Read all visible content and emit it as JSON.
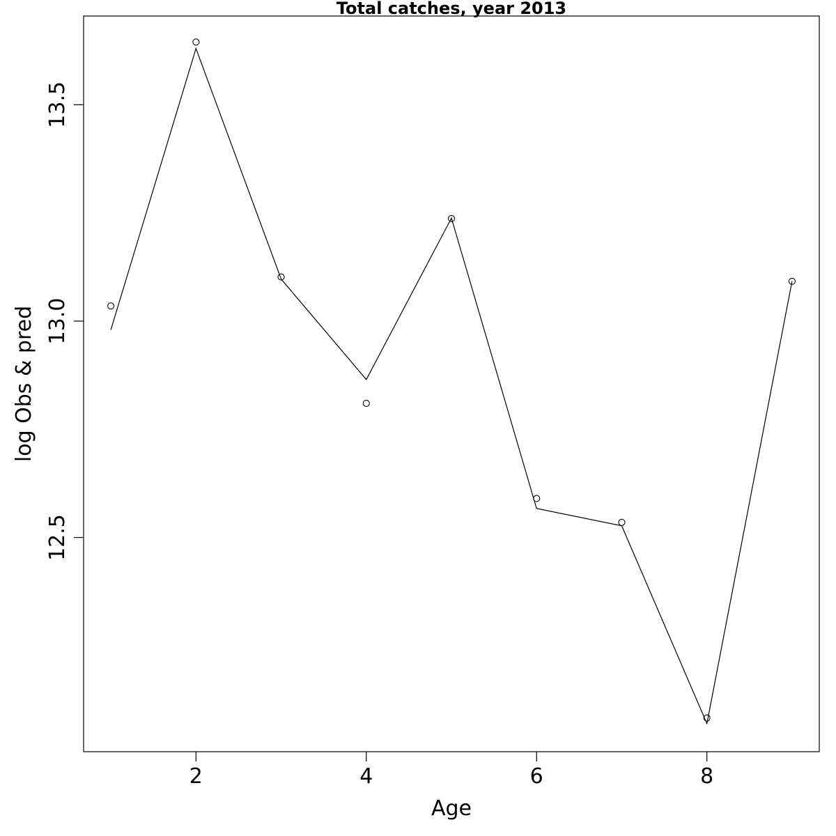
{
  "chart_data": {
    "type": "line",
    "title": "Total catches, year 2013",
    "xlabel": "Age",
    "ylabel": "log Obs & pred",
    "xlim": [
      0.68,
      9.32
    ],
    "ylim": [
      12.005,
      13.705
    ],
    "x_ticks": [
      2,
      4,
      6,
      8
    ],
    "x_tick_labels": [
      "2",
      "4",
      "6",
      "8"
    ],
    "y_ticks": [
      12.5,
      13.0,
      13.5
    ],
    "y_tick_labels": [
      "12.5",
      "13.0",
      "13.5"
    ],
    "grid": false,
    "series": [
      {
        "role": "observed",
        "style": "points",
        "marker": "open-circle",
        "x": [
          1,
          2,
          3,
          4,
          5,
          6,
          7,
          8,
          9
        ],
        "y": [
          13.035,
          13.645,
          13.102,
          12.81,
          13.237,
          12.59,
          12.535,
          12.083,
          13.092
        ]
      },
      {
        "role": "predicted",
        "style": "line",
        "x": [
          1,
          2,
          3,
          4,
          5,
          6,
          7,
          8,
          9
        ],
        "y": [
          12.98,
          13.63,
          13.097,
          12.865,
          13.238,
          12.567,
          12.527,
          12.07,
          13.092
        ]
      }
    ],
    "colors": {
      "line": "#000000",
      "points": "#000000",
      "frame": "#000000"
    }
  }
}
